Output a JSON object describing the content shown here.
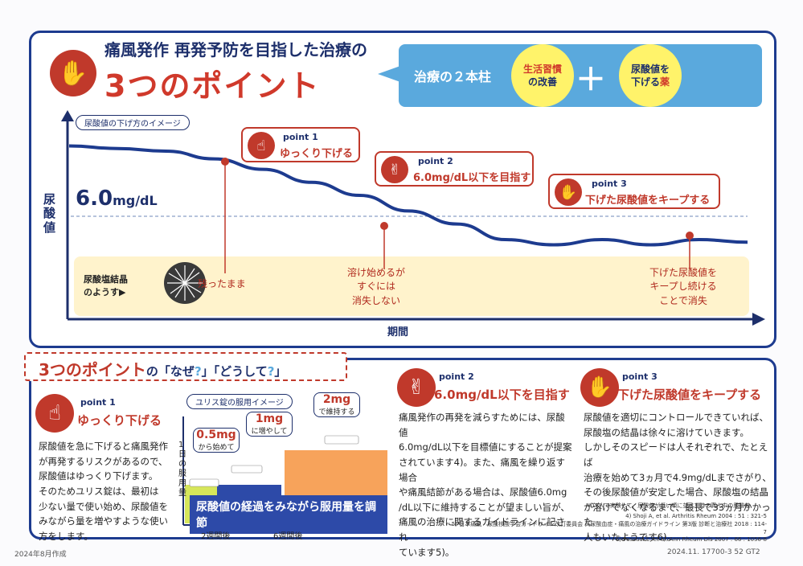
{
  "header": {
    "subtitle": "痛風発作 再発予防を目指した治療の",
    "title": "3つのポイント",
    "pillars_label": "治療の２本柱",
    "pillar1": [
      "生活習慣",
      "の改善"
    ],
    "plus": "＋",
    "pillar2": [
      "尿酸値を",
      "下げる",
      "薬"
    ]
  },
  "chart": {
    "tag": "尿酸値の下げ方のイメージ",
    "ylabel": "尿酸値",
    "xlabel": "期間",
    "threshold_label": "6.0",
    "threshold_unit": "mg/dL",
    "crystal_label": [
      "尿酸塩結晶",
      "のようす▶"
    ],
    "annotations": [
      [
        "残ったまま"
      ],
      [
        "溶け始めるが",
        "すぐには",
        "消失しない"
      ],
      [
        "下げた尿酸値を",
        "キープし続ける",
        "ことで消失"
      ]
    ],
    "points": [
      {
        "tag": "point 1",
        "label": "ゆっくり下げる"
      },
      {
        "tag": "point 2",
        "label": "6.0mg/dL以下を目指す"
      },
      {
        "tag": "point 3",
        "label": "下げた尿酸値をキープする"
      }
    ]
  },
  "chart_data": {
    "type": "line",
    "title": "尿酸値の下げ方のイメージ",
    "xlabel": "期間",
    "ylabel": "尿酸値",
    "reference_line": {
      "label": "6.0mg/dL"
    },
    "series": [
      {
        "values": [
          9.0,
          8.9,
          8.8,
          8.5,
          8.1,
          7.6,
          7.1,
          6.5,
          6.0,
          5.4,
          5.2,
          5.4,
          5.2,
          5.4,
          5.3
        ]
      }
    ]
  },
  "section2": {
    "title_pre": "3つのポイント",
    "title_post_1": "の「なぜ",
    "q1": "?",
    "title_post_2": "」「どうして",
    "q2": "?",
    "title_post_3": "」",
    "p1": {
      "tag": "point 1",
      "label": "ゆっくり下げる",
      "text": [
        "尿酸値を急に下げると痛風発作",
        "が再発するリスクがあるので、",
        "尿酸値はゆっくり下げます。",
        "そのためユリス錠は、最初は",
        "少ない量で使い始め、尿酸値を",
        "みながら量を増やすような使い",
        "方をします。"
      ]
    },
    "dose": {
      "tag": "ユリス錠の服用イメージ",
      "ylabel": "1日の服用量",
      "d1": "0.5mg",
      "d1_note": "から始めて",
      "d2": "1mg",
      "d2_note": "に増やして",
      "d3": "2mg",
      "d3_note": "で維持する",
      "banner": "尿酸値の経過をみながら服用量を調節",
      "x1": "2週間後",
      "x2": "6週間後"
    },
    "p2": {
      "tag": "point 2",
      "label": "6.0mg/dL以下を目指す",
      "text": [
        "痛風発作の再発を減らすためには、尿酸値",
        "6.0mg/dL以下を目標値にすることが提案",
        "されています4)。また、痛風を繰り返す場合",
        "や痛風結節がある場合は、尿酸値6.0mg",
        "/dL以下に維持することが望ましい旨が、",
        "痛風の治療に関するガイドラインに記され",
        "ています5)。"
      ]
    },
    "p3": {
      "tag": "point 3",
      "label": "下げた尿酸値をキープする",
      "text": [
        "尿酸値を適切にコントロールできていれば、",
        "尿酸塩の結晶は徐々に溶けていきます。",
        "しかしそのスピードは人それぞれで、たとえば",
        "治療を始めて3ヵ月で4.9mg/dLまでさがり、",
        "その後尿酸値が安定した場合、尿酸塩の結晶",
        "が溶けてなくなるまで、最長で33ヵ月かかった",
        "人もいたようです6)。"
      ],
      "note": "※18人で実験して、尿酸値が低い順に並べた時の真ん中の尿酸値"
    },
    "refs": [
      "4) Shoji A, et al. Arthritis Rheum 2004 : 51 : 321-5",
      "5) 日本痛風・尿酸核酸学会ガイドライン改訂委員会 高尿酸血症・痛風の治療ガイドライン 第3版 診断と治療社 2018 : 114-7",
      "6) Pascual E, et al. Ann Rheum Dis 2007 : 66 : 1056-8"
    ]
  },
  "footer": {
    "left": "2024年8月作成",
    "right": "2024.11. 17700-3 52 GT2"
  },
  "colors": {
    "navy": "#1d3b8f",
    "red": "#c0392b",
    "sky": "#5aa9dd",
    "yellow": "#fff36a",
    "cream": "#fff3cc",
    "orange": "#f7a35b"
  }
}
